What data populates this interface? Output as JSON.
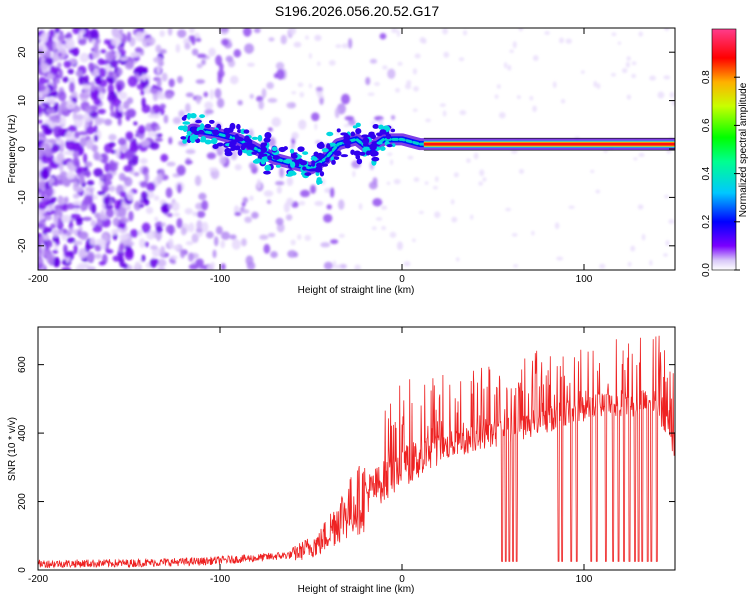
{
  "title": "S196.2026.056.20.52.G17",
  "chart_data": [
    {
      "type": "heatmap",
      "name": "spectrogram",
      "xlabel": "Height of straight line (km)",
      "ylabel": "Frequency (Hz)",
      "xlim": [
        -200,
        150
      ],
      "ylim": [
        -25,
        25
      ],
      "xticks": [
        -200,
        -100,
        0,
        100
      ],
      "yticks": [
        -20,
        -10,
        0,
        10,
        20
      ],
      "colorbar": {
        "label": "Normalized spectral amplitude",
        "range": [
          0.0,
          1.0
        ],
        "ticks": [
          "0.0",
          "0.2",
          "0.4",
          "0.6",
          "0.8"
        ]
      },
      "signal_track": [
        {
          "x": -115,
          "f": 4
        },
        {
          "x": -100,
          "f": 3
        },
        {
          "x": -90,
          "f": 2
        },
        {
          "x": -80,
          "f": 0
        },
        {
          "x": -70,
          "f": -2
        },
        {
          "x": -60,
          "f": -3
        },
        {
          "x": -50,
          "f": -4
        },
        {
          "x": -42,
          "f": -2
        },
        {
          "x": -35,
          "f": 1
        },
        {
          "x": -25,
          "f": 2
        },
        {
          "x": -18,
          "f": 0
        },
        {
          "x": -10,
          "f": 2
        },
        {
          "x": 0,
          "f": 2
        },
        {
          "x": 10,
          "f": 1
        },
        {
          "x": 20,
          "f": 1
        },
        {
          "x": 60,
          "f": 1
        },
        {
          "x": 80,
          "f": 1
        },
        {
          "x": 95,
          "f": 1
        },
        {
          "x": 150,
          "f": 1
        }
      ]
    },
    {
      "type": "line",
      "name": "snr",
      "xlabel": "Height of straight line (km)",
      "ylabel": "SNR (10 * v/v)",
      "xlim": [
        -200,
        150
      ],
      "ylim": [
        0,
        710
      ],
      "xticks": [
        -200,
        -100,
        0,
        100
      ],
      "yticks": [
        0,
        200,
        400,
        600
      ],
      "color": "#ee2222",
      "envelope": [
        {
          "x": -200,
          "y": 18
        },
        {
          "x": -150,
          "y": 20
        },
        {
          "x": -110,
          "y": 25
        },
        {
          "x": -80,
          "y": 35
        },
        {
          "x": -60,
          "y": 45
        },
        {
          "x": -45,
          "y": 80
        },
        {
          "x": -35,
          "y": 150
        },
        {
          "x": -25,
          "y": 200
        },
        {
          "x": -15,
          "y": 240
        },
        {
          "x": 0,
          "y": 300
        },
        {
          "x": 20,
          "y": 355
        },
        {
          "x": 40,
          "y": 385
        },
        {
          "x": 60,
          "y": 410
        },
        {
          "x": 80,
          "y": 440
        },
        {
          "x": 100,
          "y": 470
        },
        {
          "x": 120,
          "y": 485
        },
        {
          "x": 140,
          "y": 490
        },
        {
          "x": 150,
          "y": 360
        }
      ],
      "dropouts_x": [
        55,
        57,
        59,
        61,
        63,
        86,
        88,
        93,
        96,
        104,
        107,
        112,
        116,
        119,
        122,
        125,
        128,
        130,
        132,
        135,
        137,
        140
      ]
    }
  ]
}
